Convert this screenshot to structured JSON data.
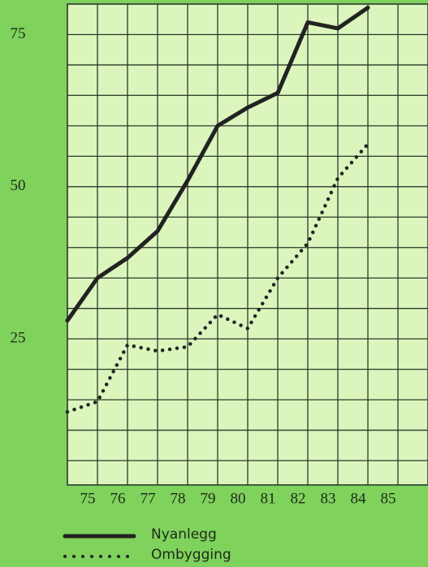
{
  "chart_data": {
    "type": "line",
    "x": [
      74,
      75,
      76,
      77,
      78,
      79,
      80,
      81,
      82,
      83,
      84
    ],
    "series": [
      {
        "name": "Nyanlegg",
        "color": "#222222",
        "style": "solid",
        "values": [
          28,
          35,
          38.3,
          42.7,
          51,
          60,
          63,
          65.4,
          77,
          76,
          79.4
        ]
      },
      {
        "name": "Ombygging",
        "color": "#222222",
        "style": "dotted",
        "values": [
          13,
          14.7,
          24,
          23,
          23.7,
          29,
          26.7,
          35,
          40.7,
          51.4,
          57
        ]
      }
    ],
    "xlim": [
      74,
      86
    ],
    "xticks": [
      75,
      76,
      77,
      78,
      79,
      80,
      81,
      82,
      83,
      84,
      85
    ],
    "ylim": [
      1,
      80
    ],
    "yticks": [
      25,
      50,
      75
    ],
    "ygrid": [
      5,
      10,
      15,
      20,
      25,
      30,
      35,
      40,
      45,
      50,
      55,
      60,
      65,
      70,
      75
    ],
    "grid": true
  }
}
